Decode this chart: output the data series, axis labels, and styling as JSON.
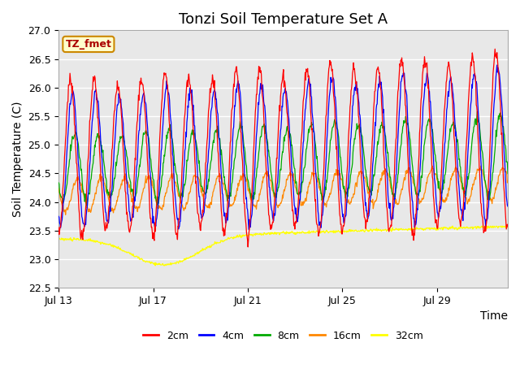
{
  "title": "Tonzi Soil Temperature Set A",
  "ylabel": "Soil Temperature (C)",
  "xlabel": "Time",
  "annotation": "TZ_fmet",
  "ylim": [
    22.5,
    27.0
  ],
  "yticks": [
    22.5,
    23.0,
    23.5,
    24.0,
    24.5,
    25.0,
    25.5,
    26.0,
    26.5,
    27.0
  ],
  "xtick_labels": [
    "Jul 13",
    "Jul 17",
    "Jul 21",
    "Jul 25",
    "Jul 29"
  ],
  "colors": {
    "2cm": "#ff0000",
    "4cm": "#0000ff",
    "8cm": "#00aa00",
    "16cm": "#ff8800",
    "32cm": "#ffff00"
  },
  "legend_labels": [
    "2cm",
    "4cm",
    "8cm",
    "16cm",
    "32cm"
  ],
  "background_color": "#ffffff",
  "plot_bg_color": "#e8e8e8",
  "grid_color": "#ffffff",
  "title_fontsize": 13,
  "label_fontsize": 10,
  "tick_fontsize": 9
}
